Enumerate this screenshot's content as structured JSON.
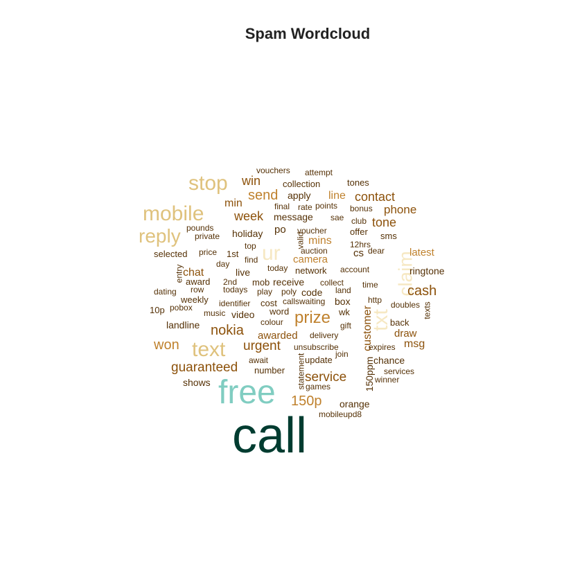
{
  "title": "Spam Wordcloud",
  "palette": {
    "darkest": "#003C30",
    "teal_light": "#80CDC1",
    "tan_light": "#DFC27D",
    "cream": "#F6E8C3",
    "tan": "#BF812D",
    "brown": "#8C510A",
    "dark_brown": "#543005"
  },
  "words": [
    {
      "text": "call",
      "color": "#003C30",
      "vertical": false
    },
    {
      "text": "free",
      "color": "#80CDC1",
      "vertical": false
    },
    {
      "text": "text",
      "color": "#DFC27D",
      "vertical": false
    },
    {
      "text": "mobile",
      "color": "#DFC27D",
      "vertical": false
    },
    {
      "text": "stop",
      "color": "#DFC27D",
      "vertical": false
    },
    {
      "text": "reply",
      "color": "#DFC27D",
      "vertical": false
    },
    {
      "text": "ur",
      "color": "#F6E8C3",
      "vertical": false
    },
    {
      "text": "txt",
      "color": "#F6E8C3",
      "vertical": true
    },
    {
      "text": "claim",
      "color": "#F6E8C3",
      "vertical": true
    },
    {
      "text": "prize",
      "color": "#BF812D",
      "vertical": false
    },
    {
      "text": "150p",
      "color": "#BF812D",
      "vertical": false
    },
    {
      "text": "won",
      "color": "#BF812D",
      "vertical": false
    },
    {
      "text": "nokia",
      "color": "#8C510A",
      "vertical": false
    },
    {
      "text": "urgent",
      "color": "#8C510A",
      "vertical": false
    },
    {
      "text": "guaranteed",
      "color": "#8C510A",
      "vertical": false
    },
    {
      "text": "cash",
      "color": "#8C510A",
      "vertical": false
    },
    {
      "text": "service",
      "color": "#8C510A",
      "vertical": false
    },
    {
      "text": "send",
      "color": "#BF812D",
      "vertical": false
    },
    {
      "text": "contact",
      "color": "#8C510A",
      "vertical": false
    },
    {
      "text": "tone",
      "color": "#8C510A",
      "vertical": false
    },
    {
      "text": "week",
      "color": "#8C510A",
      "vertical": false
    },
    {
      "text": "win",
      "color": "#8C510A",
      "vertical": false
    },
    {
      "text": "phone",
      "color": "#8C510A",
      "vertical": false
    },
    {
      "text": "customer",
      "color": "#8C510A",
      "vertical": true
    },
    {
      "text": "awarded",
      "color": "#8C510A",
      "vertical": false
    },
    {
      "text": "msg",
      "color": "#8C510A",
      "vertical": false
    },
    {
      "text": "chat",
      "color": "#8C510A",
      "vertical": false
    },
    {
      "text": "min",
      "color": "#8C510A",
      "vertical": false
    },
    {
      "text": "line",
      "color": "#BF812D",
      "vertical": false
    },
    {
      "text": "mins",
      "color": "#BF812D",
      "vertical": false
    },
    {
      "text": "camera",
      "color": "#BF812D",
      "vertical": false
    },
    {
      "text": "latest",
      "color": "#BF812D",
      "vertical": false
    },
    {
      "text": "draw",
      "color": "#8C510A",
      "vertical": false
    },
    {
      "text": "150ppm",
      "color": "#543005",
      "vertical": true
    },
    {
      "text": "landline",
      "color": "#543005",
      "vertical": false
    },
    {
      "text": "message",
      "color": "#543005",
      "vertical": false
    },
    {
      "text": "holiday",
      "color": "#543005",
      "vertical": false
    },
    {
      "text": "cs",
      "color": "#543005",
      "vertical": false
    },
    {
      "text": "chance",
      "color": "#543005",
      "vertical": false
    },
    {
      "text": "orange",
      "color": "#543005",
      "vertical": false
    },
    {
      "text": "shows",
      "color": "#543005",
      "vertical": false
    },
    {
      "text": "number",
      "color": "#543005",
      "vertical": false
    },
    {
      "text": "collection",
      "color": "#543005",
      "vertical": false
    },
    {
      "text": "apply",
      "color": "#543005",
      "vertical": false
    },
    {
      "text": "tones",
      "color": "#543005",
      "vertical": false
    },
    {
      "text": "receive",
      "color": "#543005",
      "vertical": false
    },
    {
      "text": "network",
      "color": "#543005",
      "vertical": false
    },
    {
      "text": "ringtone",
      "color": "#543005",
      "vertical": false
    },
    {
      "text": "selected",
      "color": "#543005",
      "vertical": false
    },
    {
      "text": "award",
      "color": "#543005",
      "vertical": false
    },
    {
      "text": "video",
      "color": "#543005",
      "vertical": false
    },
    {
      "text": "cost",
      "color": "#543005",
      "vertical": false
    },
    {
      "text": "code",
      "color": "#543005",
      "vertical": false
    },
    {
      "text": "box",
      "color": "#543005",
      "vertical": false
    },
    {
      "text": "sms",
      "color": "#543005",
      "vertical": false
    },
    {
      "text": "live",
      "color": "#543005",
      "vertical": false
    },
    {
      "text": "po",
      "color": "#543005",
      "vertical": false
    },
    {
      "text": "1st",
      "color": "#543005",
      "vertical": false
    },
    {
      "text": "weekly",
      "color": "#543005",
      "vertical": false
    },
    {
      "text": "mob",
      "color": "#543005",
      "vertical": false
    },
    {
      "text": "back",
      "color": "#543005",
      "vertical": false
    },
    {
      "text": "wk",
      "color": "#543005",
      "vertical": false
    },
    {
      "text": "delivery",
      "color": "#543005",
      "vertical": false
    },
    {
      "text": "unsubscribe",
      "color": "#543005",
      "vertical": false
    },
    {
      "text": "update",
      "color": "#543005",
      "vertical": false
    },
    {
      "text": "vouchers",
      "color": "#543005",
      "vertical": false
    },
    {
      "text": "attempt",
      "color": "#543005",
      "vertical": false
    },
    {
      "text": "final",
      "color": "#543005",
      "vertical": false
    },
    {
      "text": "rate",
      "color": "#543005",
      "vertical": false
    },
    {
      "text": "points",
      "color": "#543005",
      "vertical": false
    },
    {
      "text": "bonus",
      "color": "#543005",
      "vertical": false
    },
    {
      "text": "pounds",
      "color": "#543005",
      "vertical": false
    },
    {
      "text": "private",
      "color": "#543005",
      "vertical": false
    },
    {
      "text": "sae",
      "color": "#543005",
      "vertical": false
    },
    {
      "text": "club",
      "color": "#543005",
      "vertical": false
    },
    {
      "text": "voucher",
      "color": "#543005",
      "vertical": false
    },
    {
      "text": "offer",
      "color": "#543005",
      "vertical": false
    },
    {
      "text": "valid",
      "color": "#543005",
      "vertical": true
    },
    {
      "text": "top",
      "color": "#543005",
      "vertical": false
    },
    {
      "text": "12hrs",
      "color": "#543005",
      "vertical": false
    },
    {
      "text": "price",
      "color": "#543005",
      "vertical": false
    },
    {
      "text": "auction",
      "color": "#543005",
      "vertical": false
    },
    {
      "text": "dear",
      "color": "#543005",
      "vertical": false
    },
    {
      "text": "find",
      "color": "#543005",
      "vertical": false
    },
    {
      "text": "day",
      "color": "#543005",
      "vertical": false
    },
    {
      "text": "today",
      "color": "#543005",
      "vertical": false
    },
    {
      "text": "account",
      "color": "#543005",
      "vertical": false
    },
    {
      "text": "entry",
      "color": "#543005",
      "vertical": true
    },
    {
      "text": "2nd",
      "color": "#543005",
      "vertical": false
    },
    {
      "text": "collect",
      "color": "#543005",
      "vertical": false
    },
    {
      "text": "time",
      "color": "#543005",
      "vertical": false
    },
    {
      "text": "dating",
      "color": "#543005",
      "vertical": false
    },
    {
      "text": "row",
      "color": "#543005",
      "vertical": false
    },
    {
      "text": "todays",
      "color": "#543005",
      "vertical": false
    },
    {
      "text": "play",
      "color": "#543005",
      "vertical": false
    },
    {
      "text": "poly",
      "color": "#543005",
      "vertical": false
    },
    {
      "text": "land",
      "color": "#543005",
      "vertical": false
    },
    {
      "text": "http",
      "color": "#543005",
      "vertical": false
    },
    {
      "text": "identifier",
      "color": "#543005",
      "vertical": false
    },
    {
      "text": "calls",
      "color": "#543005",
      "vertical": false
    },
    {
      "text": "waiting",
      "color": "#543005",
      "vertical": false
    },
    {
      "text": "doubles",
      "color": "#543005",
      "vertical": false
    },
    {
      "text": "10p",
      "color": "#543005",
      "vertical": false
    },
    {
      "text": "pobox",
      "color": "#543005",
      "vertical": false
    },
    {
      "text": "music",
      "color": "#543005",
      "vertical": false
    },
    {
      "text": "word",
      "color": "#543005",
      "vertical": false
    },
    {
      "text": "texts",
      "color": "#543005",
      "vertical": true
    },
    {
      "text": "colour",
      "color": "#543005",
      "vertical": false
    },
    {
      "text": "gift",
      "color": "#543005",
      "vertical": false
    },
    {
      "text": "expires",
      "color": "#543005",
      "vertical": false
    },
    {
      "text": "join",
      "color": "#543005",
      "vertical": false
    },
    {
      "text": "await",
      "color": "#543005",
      "vertical": false
    },
    {
      "text": "statement",
      "color": "#543005",
      "vertical": true
    },
    {
      "text": "services",
      "color": "#543005",
      "vertical": false
    },
    {
      "text": "games",
      "color": "#543005",
      "vertical": false
    },
    {
      "text": "winner",
      "color": "#543005",
      "vertical": false
    },
    {
      "text": "mobileupd8",
      "color": "#543005",
      "vertical": false
    }
  ]
}
